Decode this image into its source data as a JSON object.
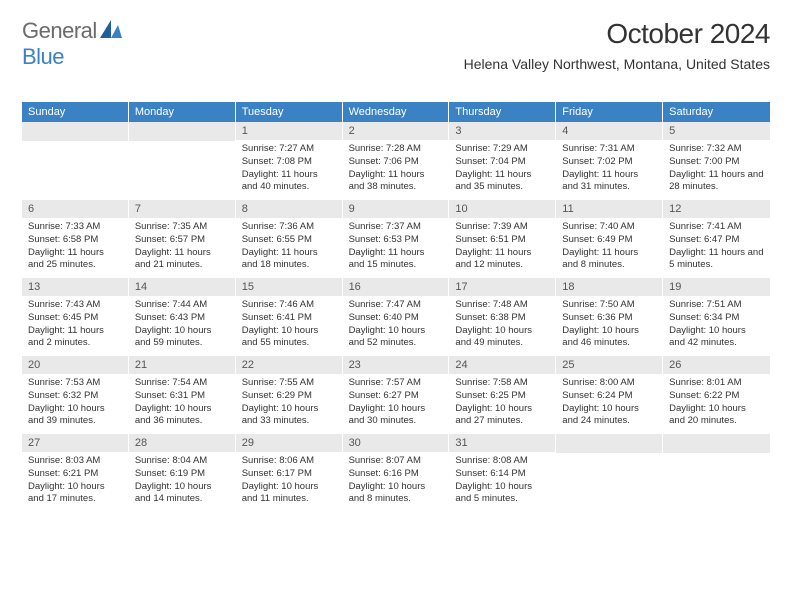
{
  "logo": {
    "word1": "General",
    "word2": "Blue"
  },
  "title": "October 2024",
  "location": "Helena Valley Northwest, Montana, United States",
  "colors": {
    "header_bg": "#3b82c4",
    "header_text": "#ffffff",
    "daynum_bg": "#e9e9e9",
    "text": "#333333",
    "logo_gray": "#6b6b6b",
    "logo_blue": "#3b82c4"
  },
  "dayNames": [
    "Sunday",
    "Monday",
    "Tuesday",
    "Wednesday",
    "Thursday",
    "Friday",
    "Saturday"
  ],
  "weeks": [
    [
      null,
      null,
      {
        "n": "1",
        "sr": "Sunrise: 7:27 AM",
        "ss": "Sunset: 7:08 PM",
        "dl": "Daylight: 11 hours and 40 minutes."
      },
      {
        "n": "2",
        "sr": "Sunrise: 7:28 AM",
        "ss": "Sunset: 7:06 PM",
        "dl": "Daylight: 11 hours and 38 minutes."
      },
      {
        "n": "3",
        "sr": "Sunrise: 7:29 AM",
        "ss": "Sunset: 7:04 PM",
        "dl": "Daylight: 11 hours and 35 minutes."
      },
      {
        "n": "4",
        "sr": "Sunrise: 7:31 AM",
        "ss": "Sunset: 7:02 PM",
        "dl": "Daylight: 11 hours and 31 minutes."
      },
      {
        "n": "5",
        "sr": "Sunrise: 7:32 AM",
        "ss": "Sunset: 7:00 PM",
        "dl": "Daylight: 11 hours and 28 minutes."
      }
    ],
    [
      {
        "n": "6",
        "sr": "Sunrise: 7:33 AM",
        "ss": "Sunset: 6:58 PM",
        "dl": "Daylight: 11 hours and 25 minutes."
      },
      {
        "n": "7",
        "sr": "Sunrise: 7:35 AM",
        "ss": "Sunset: 6:57 PM",
        "dl": "Daylight: 11 hours and 21 minutes."
      },
      {
        "n": "8",
        "sr": "Sunrise: 7:36 AM",
        "ss": "Sunset: 6:55 PM",
        "dl": "Daylight: 11 hours and 18 minutes."
      },
      {
        "n": "9",
        "sr": "Sunrise: 7:37 AM",
        "ss": "Sunset: 6:53 PM",
        "dl": "Daylight: 11 hours and 15 minutes."
      },
      {
        "n": "10",
        "sr": "Sunrise: 7:39 AM",
        "ss": "Sunset: 6:51 PM",
        "dl": "Daylight: 11 hours and 12 minutes."
      },
      {
        "n": "11",
        "sr": "Sunrise: 7:40 AM",
        "ss": "Sunset: 6:49 PM",
        "dl": "Daylight: 11 hours and 8 minutes."
      },
      {
        "n": "12",
        "sr": "Sunrise: 7:41 AM",
        "ss": "Sunset: 6:47 PM",
        "dl": "Daylight: 11 hours and 5 minutes."
      }
    ],
    [
      {
        "n": "13",
        "sr": "Sunrise: 7:43 AM",
        "ss": "Sunset: 6:45 PM",
        "dl": "Daylight: 11 hours and 2 minutes."
      },
      {
        "n": "14",
        "sr": "Sunrise: 7:44 AM",
        "ss": "Sunset: 6:43 PM",
        "dl": "Daylight: 10 hours and 59 minutes."
      },
      {
        "n": "15",
        "sr": "Sunrise: 7:46 AM",
        "ss": "Sunset: 6:41 PM",
        "dl": "Daylight: 10 hours and 55 minutes."
      },
      {
        "n": "16",
        "sr": "Sunrise: 7:47 AM",
        "ss": "Sunset: 6:40 PM",
        "dl": "Daylight: 10 hours and 52 minutes."
      },
      {
        "n": "17",
        "sr": "Sunrise: 7:48 AM",
        "ss": "Sunset: 6:38 PM",
        "dl": "Daylight: 10 hours and 49 minutes."
      },
      {
        "n": "18",
        "sr": "Sunrise: 7:50 AM",
        "ss": "Sunset: 6:36 PM",
        "dl": "Daylight: 10 hours and 46 minutes."
      },
      {
        "n": "19",
        "sr": "Sunrise: 7:51 AM",
        "ss": "Sunset: 6:34 PM",
        "dl": "Daylight: 10 hours and 42 minutes."
      }
    ],
    [
      {
        "n": "20",
        "sr": "Sunrise: 7:53 AM",
        "ss": "Sunset: 6:32 PM",
        "dl": "Daylight: 10 hours and 39 minutes."
      },
      {
        "n": "21",
        "sr": "Sunrise: 7:54 AM",
        "ss": "Sunset: 6:31 PM",
        "dl": "Daylight: 10 hours and 36 minutes."
      },
      {
        "n": "22",
        "sr": "Sunrise: 7:55 AM",
        "ss": "Sunset: 6:29 PM",
        "dl": "Daylight: 10 hours and 33 minutes."
      },
      {
        "n": "23",
        "sr": "Sunrise: 7:57 AM",
        "ss": "Sunset: 6:27 PM",
        "dl": "Daylight: 10 hours and 30 minutes."
      },
      {
        "n": "24",
        "sr": "Sunrise: 7:58 AM",
        "ss": "Sunset: 6:25 PM",
        "dl": "Daylight: 10 hours and 27 minutes."
      },
      {
        "n": "25",
        "sr": "Sunrise: 8:00 AM",
        "ss": "Sunset: 6:24 PM",
        "dl": "Daylight: 10 hours and 24 minutes."
      },
      {
        "n": "26",
        "sr": "Sunrise: 8:01 AM",
        "ss": "Sunset: 6:22 PM",
        "dl": "Daylight: 10 hours and 20 minutes."
      }
    ],
    [
      {
        "n": "27",
        "sr": "Sunrise: 8:03 AM",
        "ss": "Sunset: 6:21 PM",
        "dl": "Daylight: 10 hours and 17 minutes."
      },
      {
        "n": "28",
        "sr": "Sunrise: 8:04 AM",
        "ss": "Sunset: 6:19 PM",
        "dl": "Daylight: 10 hours and 14 minutes."
      },
      {
        "n": "29",
        "sr": "Sunrise: 8:06 AM",
        "ss": "Sunset: 6:17 PM",
        "dl": "Daylight: 10 hours and 11 minutes."
      },
      {
        "n": "30",
        "sr": "Sunrise: 8:07 AM",
        "ss": "Sunset: 6:16 PM",
        "dl": "Daylight: 10 hours and 8 minutes."
      },
      {
        "n": "31",
        "sr": "Sunrise: 8:08 AM",
        "ss": "Sunset: 6:14 PM",
        "dl": "Daylight: 10 hours and 5 minutes."
      },
      null,
      null
    ]
  ]
}
